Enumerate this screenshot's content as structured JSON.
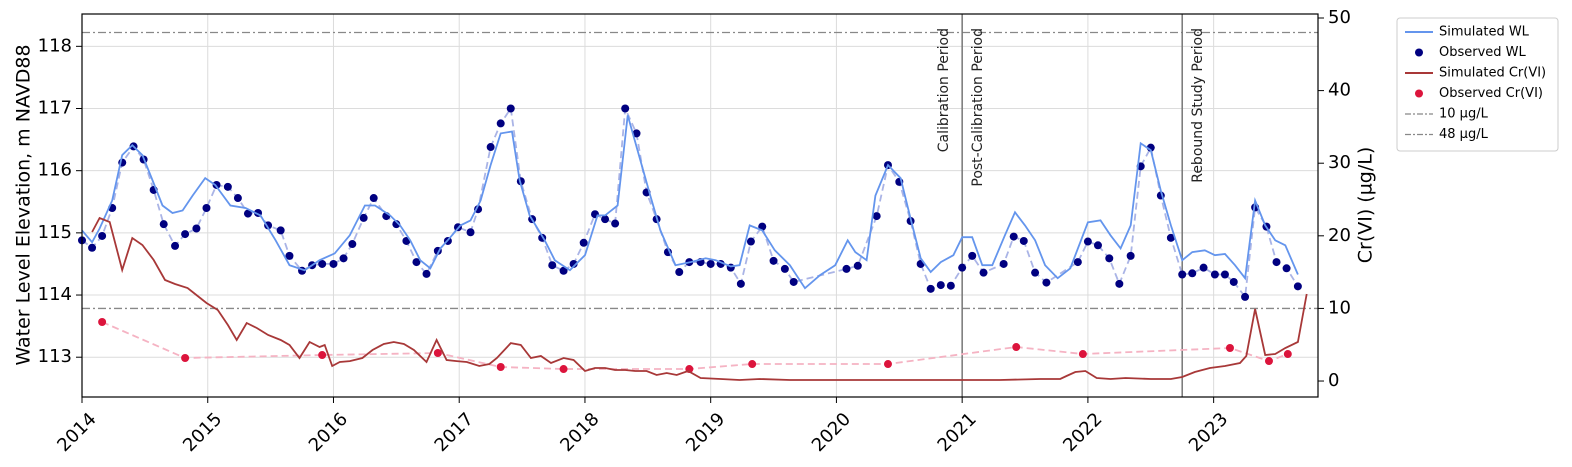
{
  "chart_data": {
    "type": "line",
    "ylabel": "Water Level Elevation, m NAVD88",
    "y2label": "Cr(VI) (µg/L)",
    "xlim": [
      2014,
      2023.83
    ],
    "xticks": [
      2014,
      2015,
      2016,
      2017,
      2018,
      2019,
      2020,
      2021,
      2022,
      2023
    ],
    "ylim": [
      112.36,
      118.52
    ],
    "yticks": [
      113,
      114,
      115,
      116,
      117,
      118
    ],
    "y2lim": [
      -2.2,
      50.55
    ],
    "y2ticks": [
      0,
      10,
      20,
      30,
      40,
      50
    ],
    "grid": true,
    "legend": "outside right",
    "series": [
      {
        "name": "Simulated WL",
        "type": "line",
        "color": "#6495ed",
        "x": [
          2014.0,
          2014.08,
          2014.14,
          2014.24,
          2014.32,
          2014.4,
          2014.48,
          2014.56,
          2014.64,
          2014.72,
          2014.8,
          2014.88,
          2014.98,
          2015.06,
          2015.18,
          2015.3,
          2015.42,
          2015.54,
          2015.65,
          2015.77,
          2015.89,
          2016.01,
          2016.13,
          2016.25,
          2016.33,
          2016.45,
          2016.53,
          2016.61,
          2016.69,
          2016.77,
          2016.85,
          2016.93,
          2017.01,
          2017.09,
          2017.17,
          2017.25,
          2017.33,
          2017.42,
          2017.48,
          2017.56,
          2017.68,
          2017.76,
          2017.88,
          2018.0,
          2018.1,
          2018.16,
          2018.26,
          2018.34,
          2018.44,
          2018.52,
          2018.6,
          2018.72,
          2018.84,
          2018.96,
          2019.04,
          2019.16,
          2019.23,
          2019.31,
          2019.41,
          2019.51,
          2019.63,
          2019.75,
          2019.87,
          2019.99,
          2020.09,
          2020.15,
          2020.24,
          2020.31,
          2020.41,
          2020.51,
          2020.59,
          2020.67,
          2020.75,
          2020.83,
          2020.93,
          2021.0,
          2021.08,
          2021.16,
          2021.24,
          2021.34,
          2021.42,
          2021.5,
          2021.58,
          2021.66,
          2021.76,
          2021.86,
          2022.0,
          2022.1,
          2022.18,
          2022.26,
          2022.34,
          2022.42,
          2022.5,
          2022.58,
          2022.66,
          2022.75,
          2022.83,
          2022.93,
          2023.01,
          2023.09,
          2023.17,
          2023.25,
          2023.33,
          2023.41,
          2023.49,
          2023.57,
          2023.67
        ],
        "values": [
          115.04,
          114.85,
          115.07,
          115.52,
          116.25,
          116.41,
          116.25,
          115.85,
          115.44,
          115.32,
          115.36,
          115.6,
          115.88,
          115.77,
          115.44,
          115.4,
          115.28,
          114.88,
          114.48,
          114.4,
          114.56,
          114.67,
          114.96,
          115.44,
          115.44,
          115.28,
          115.12,
          114.88,
          114.56,
          114.43,
          114.75,
          114.93,
          115.12,
          115.2,
          115.52,
          116.09,
          116.6,
          116.63,
          115.85,
          115.28,
          114.88,
          114.56,
          114.4,
          114.64,
          115.28,
          115.28,
          115.44,
          116.89,
          116.17,
          115.6,
          115.04,
          114.48,
          114.53,
          114.59,
          114.56,
          114.46,
          114.48,
          115.12,
          115.04,
          114.72,
          114.48,
          114.11,
          114.32,
          114.48,
          114.88,
          114.69,
          114.56,
          115.6,
          116.09,
          115.88,
          115.23,
          114.59,
          114.37,
          114.53,
          114.64,
          114.93,
          114.93,
          114.48,
          114.48,
          114.96,
          115.33,
          115.12,
          114.88,
          114.48,
          114.27,
          114.43,
          115.17,
          115.2,
          114.96,
          114.75,
          115.12,
          116.44,
          116.33,
          115.68,
          115.12,
          114.56,
          114.69,
          114.72,
          114.64,
          114.66,
          114.48,
          114.27,
          115.52,
          115.12,
          114.88,
          114.8,
          114.33
        ]
      },
      {
        "name": "Observed WL",
        "type": "scatter",
        "color": "#000080",
        "line_color": "#aab4e6",
        "x": [
          2014.0,
          2014.08,
          2014.16,
          2014.24,
          2014.32,
          2014.41,
          2014.49,
          2014.57,
          2014.65,
          2014.74,
          2014.82,
          2014.91,
          2014.99,
          2015.07,
          2015.16,
          2015.24,
          2015.32,
          2015.4,
          2015.48,
          2015.58,
          2015.65,
          2015.75,
          2015.83,
          2015.91,
          2016.0,
          2016.08,
          2016.15,
          2016.24,
          2016.32,
          2016.42,
          2016.5,
          2016.58,
          2016.66,
          2016.74,
          2016.83,
          2016.91,
          2016.99,
          2017.09,
          2017.15,
          2017.25,
          2017.33,
          2017.41,
          2017.49,
          2017.58,
          2017.66,
          2017.74,
          2017.83,
          2017.91,
          2017.99,
          2018.08,
          2018.16,
          2018.24,
          2018.32,
          2018.41,
          2018.49,
          2018.57,
          2018.66,
          2018.75,
          2018.83,
          2018.92,
          2019.0,
          2019.08,
          2019.16,
          2019.24,
          2019.32,
          2019.41,
          2019.5,
          2019.59,
          2019.66,
          2020.08,
          2020.17,
          2020.32,
          2020.41,
          2020.5,
          2020.59,
          2020.67,
          2020.75,
          2020.83,
          2020.91,
          2021.0,
          2021.08,
          2021.17,
          2021.33,
          2021.41,
          2021.49,
          2021.58,
          2021.67,
          2021.92,
          2022.0,
          2022.08,
          2022.17,
          2022.25,
          2022.34,
          2022.42,
          2022.5,
          2022.58,
          2022.66,
          2022.75,
          2022.83,
          2022.92,
          2023.01,
          2023.09,
          2023.16,
          2023.25,
          2023.33,
          2023.42,
          2023.5,
          2023.58,
          2023.67
        ],
        "values": [
          114.88,
          114.76,
          114.95,
          115.4,
          116.13,
          116.39,
          116.18,
          115.69,
          115.14,
          114.79,
          114.98,
          115.07,
          115.4,
          115.77,
          115.74,
          115.56,
          115.31,
          115.32,
          115.12,
          115.04,
          114.63,
          114.39,
          114.48,
          114.5,
          114.5,
          114.59,
          114.82,
          115.24,
          115.56,
          115.27,
          115.14,
          114.87,
          114.53,
          114.34,
          114.71,
          114.87,
          115.09,
          115.01,
          115.38,
          116.38,
          116.76,
          117.0,
          115.83,
          115.22,
          114.92,
          114.48,
          114.39,
          114.5,
          114.84,
          115.3,
          115.22,
          115.15,
          117.0,
          116.6,
          115.65,
          115.22,
          114.69,
          114.37,
          114.53,
          114.53,
          114.5,
          114.5,
          114.44,
          114.18,
          114.86,
          115.1,
          114.55,
          114.42,
          114.21,
          114.42,
          114.47,
          115.27,
          116.09,
          115.82,
          115.19,
          114.5,
          114.1,
          114.16,
          114.15,
          114.44,
          114.63,
          114.36,
          114.5,
          114.94,
          114.87,
          114.36,
          114.2,
          114.53,
          114.86,
          114.8,
          114.59,
          114.18,
          114.63,
          116.07,
          116.37,
          115.6,
          114.92,
          114.33,
          114.35,
          114.44,
          114.33,
          114.33,
          114.21,
          113.97,
          115.41,
          115.1,
          114.53,
          114.43,
          114.14
        ]
      },
      {
        "name": "Simulated Cr(VI)",
        "type": "line",
        "axis": "y2",
        "color": "#a83838",
        "x": [
          2014.08,
          2014.14,
          2014.22,
          2014.32,
          2014.4,
          2014.48,
          2014.57,
          2014.66,
          2014.74,
          2014.84,
          2014.91,
          2014.99,
          2015.08,
          2015.16,
          2015.23,
          2015.31,
          2015.39,
          2015.48,
          2015.58,
          2015.65,
          2015.73,
          2015.81,
          2015.89,
          2015.93,
          2015.99,
          2016.05,
          2016.13,
          2016.23,
          2016.31,
          2016.4,
          2016.48,
          2016.56,
          2016.64,
          2016.74,
          2016.82,
          2016.9,
          2016.98,
          2017.06,
          2017.16,
          2017.24,
          2017.3,
          2017.41,
          2017.49,
          2017.57,
          2017.65,
          2017.73,
          2017.83,
          2017.91,
          2018.0,
          2018.08,
          2018.16,
          2018.24,
          2018.32,
          2018.4,
          2018.49,
          2018.57,
          2018.65,
          2018.73,
          2018.82,
          2018.92,
          2019.08,
          2019.23,
          2019.39,
          2019.63,
          2019.95,
          2020.35,
          2020.67,
          2020.98,
          2021.3,
          2021.62,
          2021.78,
          2021.83,
          2021.9,
          2021.98,
          2022.07,
          2022.18,
          2022.3,
          2022.5,
          2022.66,
          2022.75,
          2022.85,
          2022.97,
          2023.09,
          2023.21,
          2023.26,
          2023.33,
          2023.41,
          2023.49,
          2023.57,
          2023.67,
          2023.74
        ],
        "values": [
          20.52,
          22.45,
          21.9,
          15.29,
          19.7,
          18.73,
          16.67,
          13.91,
          13.36,
          12.81,
          11.85,
          10.74,
          9.78,
          7.71,
          5.65,
          7.99,
          7.3,
          6.34,
          5.65,
          4.96,
          3.17,
          5.37,
          4.68,
          4.96,
          2.07,
          2.62,
          2.75,
          3.17,
          4.27,
          5.1,
          5.37,
          5.1,
          4.27,
          2.62,
          5.65,
          2.89,
          2.75,
          2.62,
          2.07,
          2.34,
          3.17,
          5.23,
          4.96,
          3.17,
          3.44,
          2.48,
          3.17,
          2.89,
          1.38,
          1.79,
          1.79,
          1.52,
          1.52,
          1.38,
          1.38,
          0.83,
          1.1,
          0.83,
          1.38,
          0.41,
          0.28,
          0.14,
          0.28,
          0.14,
          0.14,
          0.14,
          0.14,
          0.14,
          0.14,
          0.28,
          0.28,
          0.69,
          1.24,
          1.38,
          0.41,
          0.28,
          0.41,
          0.28,
          0.28,
          0.55,
          1.24,
          1.79,
          2.07,
          2.48,
          3.44,
          9.92,
          3.58,
          3.72,
          4.55,
          5.37,
          11.98
        ]
      },
      {
        "name": "Observed Cr(VI)",
        "type": "scatter",
        "axis": "y2",
        "color": "#dc143c",
        "line_color": "#f5b3c3",
        "x": [
          2014.16,
          2014.82,
          2015.91,
          2016.83,
          2017.33,
          2017.83,
          2018.83,
          2019.33,
          2020.41,
          2021.43,
          2021.96,
          2023.13,
          2023.44,
          2023.59
        ],
        "values": [
          8.13,
          3.17,
          3.58,
          3.86,
          1.93,
          1.65,
          1.65,
          2.34,
          2.34,
          4.68,
          3.72,
          4.55,
          2.75,
          3.72
        ]
      }
    ],
    "hlines": [
      {
        "name": "10 µg/L",
        "value": 10,
        "axis": "y2",
        "color": "#888888"
      },
      {
        "name": "48 µg/L",
        "value": 48,
        "axis": "y2",
        "color": "#888888"
      }
    ],
    "vlines": [
      2021,
      2022.75
    ],
    "annotations": [
      "Calibration Period",
      "Post-Calibration Period",
      "Rebound Study Period"
    ]
  }
}
